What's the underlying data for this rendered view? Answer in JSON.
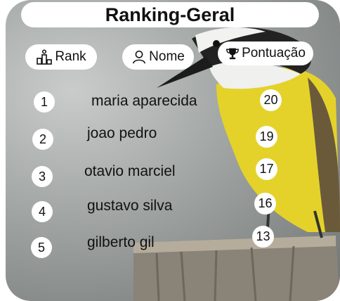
{
  "title": "Ranking-Geral",
  "headers": {
    "rank": "Rank",
    "name": "Nome",
    "score": "Pontuação"
  },
  "rows": [
    {
      "rank": "1",
      "name": "maria aparecida",
      "score": "20"
    },
    {
      "rank": "2",
      "name": "joao pedro",
      "score": "19"
    },
    {
      "rank": "3",
      "name": "otavio marciel",
      "score": "17"
    },
    {
      "rank": "4",
      "name": "gustavo silva",
      "score": "16"
    },
    {
      "rank": "5",
      "name": "gilberto gil",
      "score": "13"
    }
  ],
  "icons": {
    "rank": "podium-icon",
    "name": "user-icon",
    "score": "trophy-icon"
  },
  "colors": {
    "bird_belly": "#e6d32a",
    "background": "#9fa3a2",
    "pill": "#ffffff"
  }
}
